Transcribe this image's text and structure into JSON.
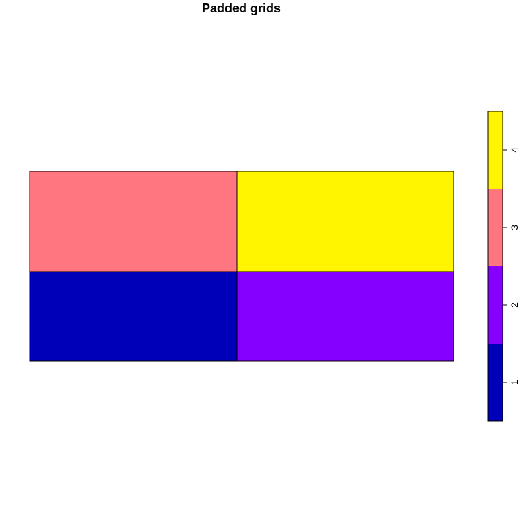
{
  "chart_data": {
    "type": "heatmap",
    "title": "Padded grids",
    "xlabel": "",
    "ylabel": "",
    "grid": false,
    "cells": [
      {
        "col": 1,
        "row": 1,
        "value": 1,
        "color": "#0000B9"
      },
      {
        "col": 2,
        "row": 1,
        "value": 2,
        "color": "#8600FF"
      },
      {
        "col": 1,
        "row": 2,
        "value": 3,
        "color": "#FF7680"
      },
      {
        "col": 2,
        "row": 2,
        "value": 4,
        "color": "#FFF500"
      }
    ],
    "legend": {
      "type": "colorbar",
      "placement": "right",
      "range": [
        0.5,
        4.5
      ],
      "ticks": [
        "1",
        "2",
        "3",
        "4"
      ],
      "tick_values": [
        1,
        2,
        3,
        4
      ],
      "colors": [
        "#0000B9",
        "#8600FF",
        "#FF7680",
        "#FFF500"
      ]
    }
  }
}
